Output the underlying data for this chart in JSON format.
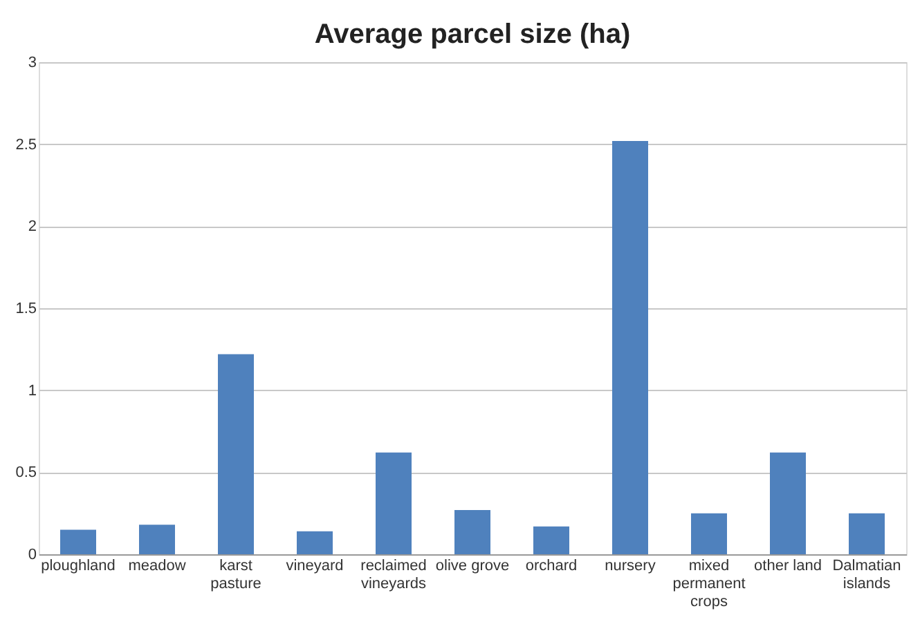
{
  "chart_data": {
    "type": "bar",
    "title": "Average parcel size (ha)",
    "categories": [
      "ploughland",
      "meadow",
      "karst pasture",
      "vineyard",
      "reclaimed vineyards",
      "olive grove",
      "orchard",
      "nursery",
      "mixed permanent crops",
      "other land",
      "Dalmatian islands"
    ],
    "values": [
      0.15,
      0.18,
      1.22,
      0.14,
      0.62,
      0.27,
      0.17,
      2.52,
      0.25,
      0.62,
      0.25
    ],
    "color": "#4f81bd",
    "ylim": [
      0,
      3
    ],
    "yticks": [
      0,
      0.5,
      1,
      1.5,
      2,
      2.5,
      3
    ],
    "grid": "y"
  }
}
